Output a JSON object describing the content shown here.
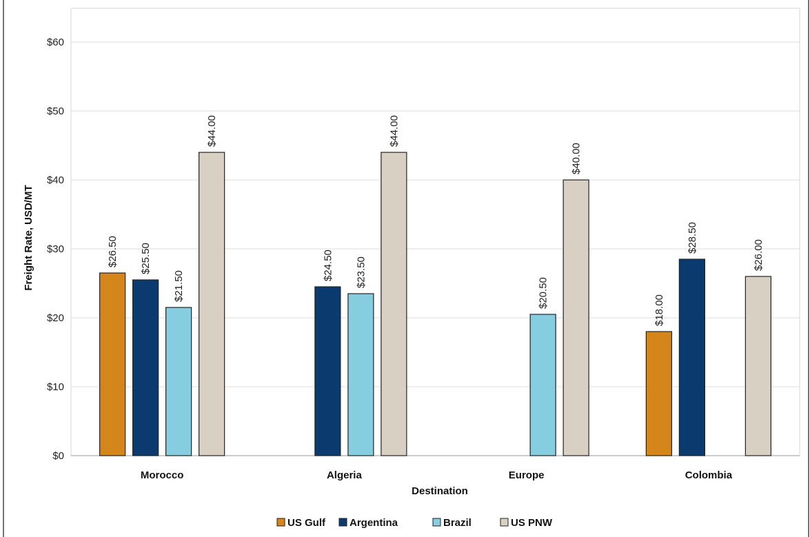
{
  "chart_data": {
    "type": "bar",
    "title": "",
    "xlabel": "Destination",
    "ylabel": "Freight Rate, USD/MT",
    "categories": [
      "Morocco",
      "Algeria",
      "Europe",
      "Colombia"
    ],
    "ylim": [
      0,
      60
    ],
    "y_ticks": [
      "$0",
      "$10",
      "$20",
      "$30",
      "$40",
      "$50",
      "$60"
    ],
    "y_tick_values": [
      0,
      10,
      20,
      30,
      40,
      50,
      60
    ],
    "grid": true,
    "legend_position": "bottom",
    "series": [
      {
        "name": "US Gulf",
        "color": "#D4861B",
        "values": [
          26.5,
          null,
          null,
          18.0
        ],
        "labels": [
          "$26.50",
          "",
          "",
          "$18.00"
        ]
      },
      {
        "name": "Argentina",
        "color": "#0A3A6E",
        "values": [
          25.5,
          24.5,
          null,
          28.5
        ],
        "labels": [
          "$25.50",
          "$24.50",
          "",
          "$28.50"
        ]
      },
      {
        "name": "Brazil",
        "color": "#86CDE0",
        "values": [
          21.5,
          23.5,
          20.5,
          null
        ],
        "labels": [
          "$21.50",
          "$23.50",
          "$20.50",
          ""
        ]
      },
      {
        "name": "US PNW",
        "color": "#D8D0C2",
        "values": [
          44.0,
          44.0,
          40.0,
          26.0
        ],
        "labels": [
          "$44.00",
          "$44.00",
          "$40.00",
          "$26.00"
        ]
      }
    ]
  }
}
